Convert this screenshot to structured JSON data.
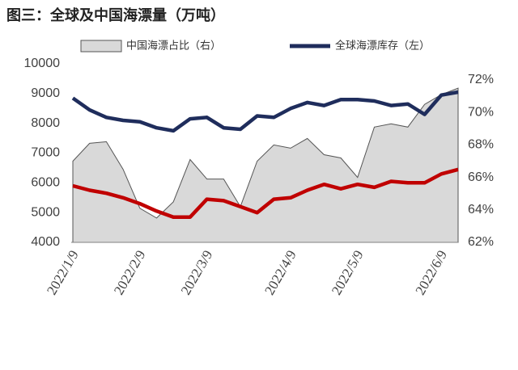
{
  "chart_data": {
    "type": "combo",
    "title": "图三：全球及中国海漂量（万吨）",
    "categories": [
      "2022/1/9",
      null,
      null,
      null,
      "2022/2/9",
      null,
      null,
      null,
      "2022/3/9",
      null,
      null,
      null,
      null,
      "2022/4/9",
      null,
      null,
      null,
      "2022/5/9",
      null,
      null,
      null,
      null,
      "2022/6/9",
      null
    ],
    "series": [
      {
        "name": "中国海漂占比（右）",
        "type": "area",
        "axis": "y2",
        "color": "#d9d9d9",
        "values": [
          67,
          68.1,
          68.2,
          66.5,
          64.1,
          63.5,
          64.5,
          67.1,
          65.9,
          65.9,
          64.2,
          67,
          68,
          67.8,
          68.4,
          67.4,
          67.2,
          66,
          69.1,
          69.3,
          69.1,
          70.5,
          71.1,
          71.5
        ]
      },
      {
        "name": "全球海漂库存（左）",
        "type": "line",
        "color": "#1f2d5c",
        "values": [
          8850,
          8450,
          8200,
          8100,
          8050,
          7850,
          7750,
          8150,
          8200,
          7850,
          7800,
          8250,
          8200,
          8500,
          8700,
          8600,
          8800,
          8800,
          8750,
          8600,
          8650,
          8300,
          8950,
          9050
        ]
      },
      {
        "type": "line",
        "color": "#c00000",
        "values": [
          5900,
          5750,
          5650,
          5500,
          5300,
          5050,
          4850,
          4850,
          5450,
          5400,
          5200,
          5000,
          5450,
          5500,
          5750,
          5950,
          5800,
          5950,
          5850,
          6050,
          6000,
          6000,
          6300,
          6450
        ]
      }
    ],
    "ylim": [
      4000,
      10000
    ],
    "yticks": [
      4000,
      5000,
      6000,
      7000,
      8000,
      9000,
      10000
    ],
    "y2lim": [
      62,
      72
    ],
    "y2ticks": [
      {
        "value": 62,
        "label": "62%"
      },
      {
        "value": 64,
        "label": "64%"
      },
      {
        "value": 66,
        "label": "66%"
      },
      {
        "value": 68,
        "label": "68%"
      },
      {
        "value": 70,
        "label": "70%"
      },
      {
        "value": 72,
        "label": "72%"
      }
    ]
  }
}
